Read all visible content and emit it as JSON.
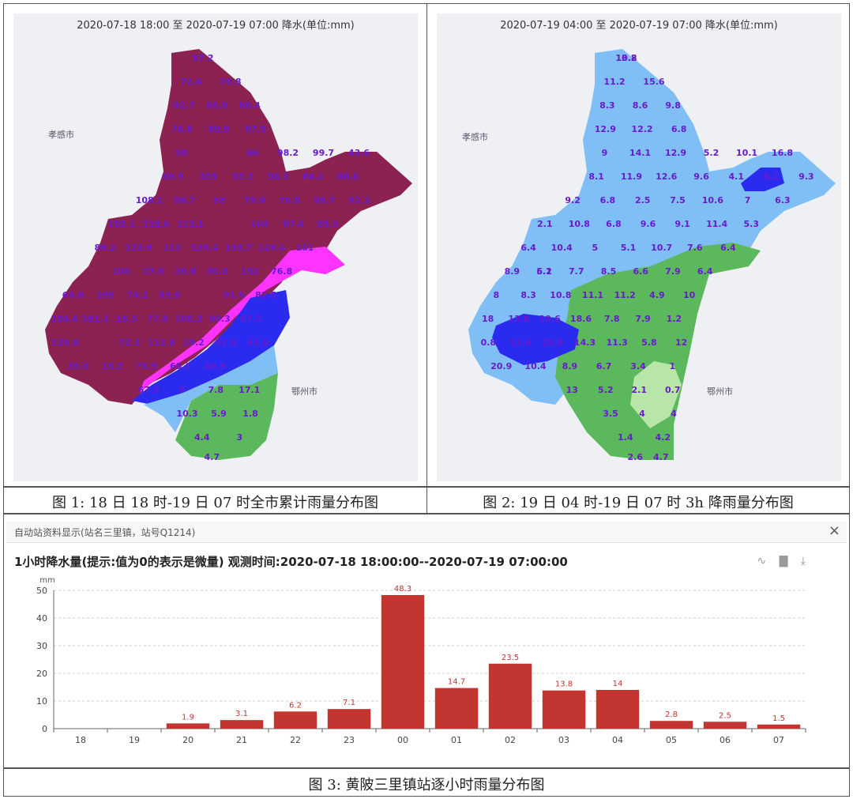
{
  "map1": {
    "title": "2020-07-18 18:00 至 2020-07-19 07:00 降水(单位:mm)",
    "caption": "图 1:   18 日 18 时-19 日 07 时全市累计雨量分布图",
    "place_left": "孝感市",
    "place_right": "鄂州市",
    "labels": [
      "57.2",
      "72.4",
      "70.8",
      "92.7",
      "68.9",
      "88.4",
      "76.8",
      "89.8",
      "87.9",
      "98",
      "66",
      "98.2",
      "99.7",
      "43.6",
      "89.9",
      "105",
      "55.1",
      "58.5",
      "84.2",
      "88.6",
      "108.1",
      "99.7",
      "98",
      "79.9",
      "70.8",
      "99.7",
      "92.3",
      "102.1",
      "118.6",
      "113.1",
      "104",
      "87.4",
      "69.5",
      "89.2",
      "123.9",
      "113",
      "139.4",
      "110.7",
      "129.4",
      "101",
      "106",
      "37.9",
      "39.8",
      "90.8",
      "102",
      "76.8",
      "64.9",
      "105",
      "74.1",
      "93.8",
      "91.9",
      "82.5",
      "104.6",
      "101.1",
      "16.5",
      "77.8",
      "106.2",
      "89.3",
      "67.2",
      "120.8",
      "72.1",
      "112.8",
      "29.2",
      "92.4",
      "63.6",
      "39.5",
      "18.2",
      "75.9",
      "68.1",
      "49.9",
      "67.3",
      "5",
      "7.8",
      "17.1",
      "10.3",
      "5.9",
      "1.8",
      "4.4",
      "3",
      "4.7"
    ],
    "colors": {
      "purple": "#8b2252",
      "magenta": "#ff33ff",
      "blue": "#2b2bf0",
      "lightblue": "#7fbff5",
      "green": "#5cb85c"
    }
  },
  "map2": {
    "title": "2020-07-19 04:00 至 2020-07-19 07:00 降水(单位:mm)",
    "caption": "图 2:   19 日 04 时-19 日 07 时 3h 降雨量分布图",
    "place_left": "孝感市",
    "place_right": "鄂州市",
    "labels": [
      "10.8",
      "13.2",
      "11.2",
      "15.6",
      "8.3",
      "8.6",
      "9.8",
      "12.9",
      "12.2",
      "6.8",
      "9",
      "14.1",
      "12.9",
      "5.2",
      "10.1",
      "16.8",
      "8.1",
      "11.9",
      "12.6",
      "9.6",
      "4.1",
      "8.1",
      "9.3",
      "9.2",
      "6.8",
      "2.5",
      "7.5",
      "10.6",
      "7",
      "6.3",
      "2.1",
      "10.8",
      "6.8",
      "9.6",
      "9.1",
      "11.4",
      "5.3",
      "6.4",
      "10.4",
      "5",
      "5.1",
      "10.7",
      "7.6",
      "6.4",
      "8.9",
      "5.1",
      "6.2",
      "7.7",
      "8.5",
      "6.6",
      "7.9",
      "6.4",
      "8",
      "8.3",
      "10.8",
      "11.1",
      "11.2",
      "4.9",
      "10",
      "18",
      "13.8",
      "19.6",
      "18.6",
      "7.8",
      "7.9",
      "1.2",
      "0.8",
      "13.6",
      "20.8",
      "14.3",
      "11.3",
      "5.8",
      "12",
      "20.9",
      "10.4",
      "8.9",
      "6.7",
      "3.4",
      "1",
      "13",
      "5.2",
      "2.1",
      "0.7",
      "3.5",
      "4",
      "4",
      "1.4",
      "4.2",
      "2.6",
      "4.7"
    ],
    "colors": {
      "blue": "#2b2bf0",
      "lightblue": "#7fbff5",
      "green": "#5cb85c",
      "lightgreen": "#b8e6a8"
    }
  },
  "station": {
    "header": "自动站资料显示(站名三里镇，站号Q1214)",
    "close": "×",
    "chart_title": "1小时降水量(提示:值为0的表示是微量)   观测时间:2020-07-18 18:00:00--2020-07-19 07:00:00",
    "caption": "图 3:  黄陂三里镇站逐小时雨量分布图",
    "tools": [
      "line-chart-icon",
      "bar-chart-icon",
      "download-icon"
    ]
  },
  "chart_data": {
    "type": "bar",
    "categories": [
      "18",
      "19",
      "20",
      "21",
      "22",
      "23",
      "00",
      "01",
      "02",
      "03",
      "04",
      "05",
      "06",
      "07"
    ],
    "values": [
      0,
      0,
      1.9,
      3.1,
      6.2,
      7.1,
      48.3,
      14.7,
      23.5,
      13.8,
      14,
      2.8,
      2.5,
      1.5
    ],
    "value_labels": [
      "",
      "",
      "1.9",
      "3.1",
      "6.2",
      "7.1",
      "48.3",
      "14.7",
      "23.5",
      "13.8",
      "14",
      "2.8",
      "2.5",
      "1.5"
    ],
    "ylabel": "mm",
    "yticks": [
      "0",
      "10",
      "20",
      "30",
      "40",
      "50"
    ],
    "ylim": [
      0,
      50
    ],
    "bar_color": "#c23531",
    "label_color": "#c23531"
  }
}
